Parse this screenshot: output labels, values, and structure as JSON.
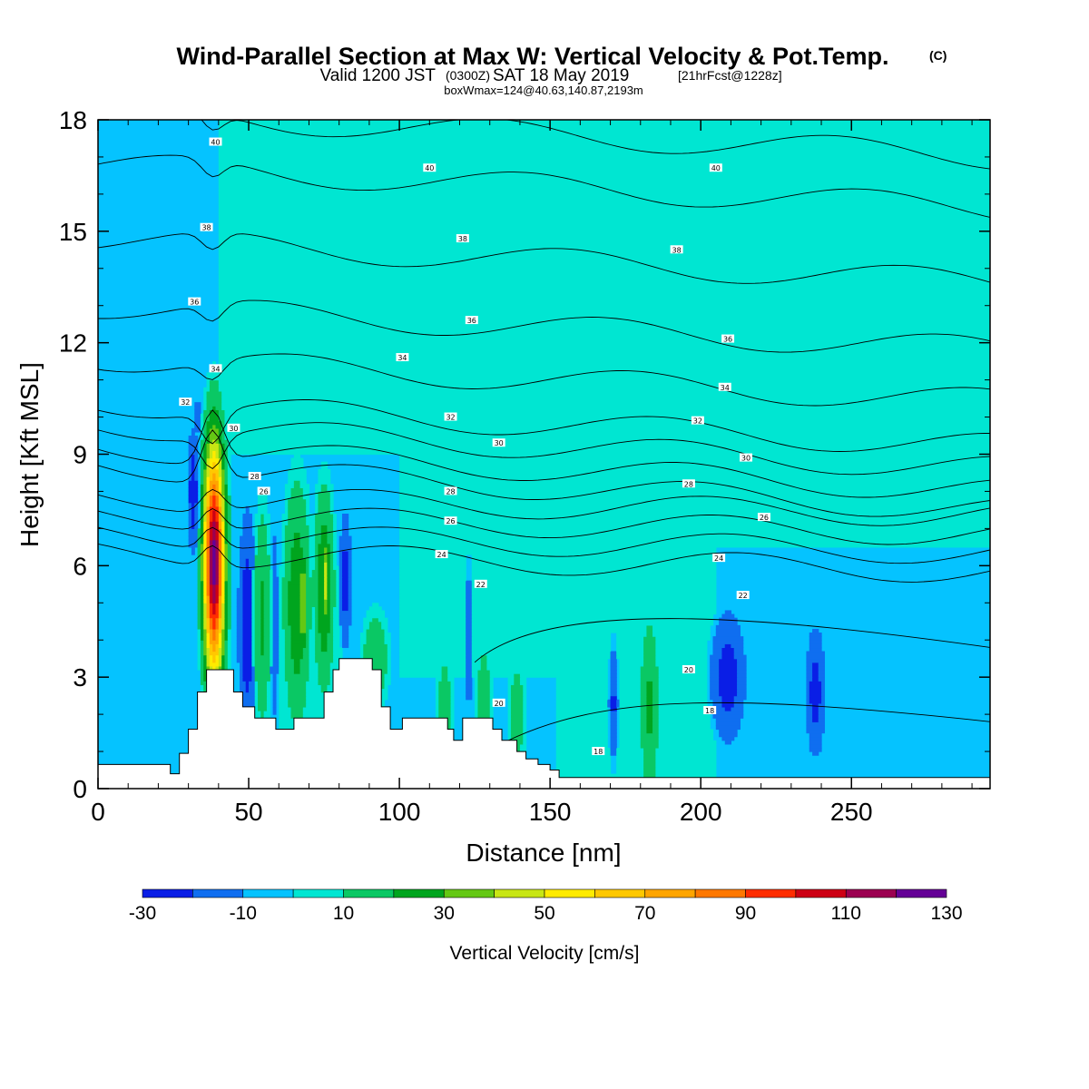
{
  "title": {
    "main": "Wind-Parallel Section at Max W: Vertical Velocity & Pot.Temp.",
    "copyright": "(C)",
    "valid_prefix": "Valid 1200 JST",
    "utc": "(0300Z)",
    "valid_date": "SAT 18 May 2019",
    "forecast": "[21hrFcst@1228z]",
    "boxinfo": "boxWmax=124@40.63,140.87,2193m"
  },
  "chart_data": {
    "type": "heatmap",
    "xlabel": "Distance [nm]",
    "ylabel": "Height [Kft MSL]",
    "xlim": [
      0,
      296
    ],
    "ylim": [
      0,
      18
    ],
    "xticks": [
      0,
      50,
      100,
      150,
      200,
      250
    ],
    "yticks": [
      0,
      3,
      6,
      9,
      12,
      15,
      18
    ],
    "colorbar": {
      "title": "Vertical Velocity [cm/s]",
      "levels": [
        -30,
        -20,
        -10,
        0,
        10,
        20,
        30,
        40,
        50,
        60,
        70,
        80,
        90,
        100,
        110,
        120,
        130
      ],
      "labels": [
        "-30",
        "-10",
        "10",
        "30",
        "50",
        "70",
        "90",
        "110",
        "130"
      ],
      "label_values": [
        -30,
        -10,
        10,
        30,
        50,
        70,
        90,
        110,
        130
      ],
      "colors": [
        "#0a1ee6",
        "#0f6ef0",
        "#05c3ff",
        "#00e6d2",
        "#0ac864",
        "#00a51e",
        "#64c814",
        "#c8e614",
        "#ffeb00",
        "#ffc800",
        "#ffa500",
        "#ff7800",
        "#ff2d00",
        "#cd0014",
        "#9b0050",
        "#640096"
      ]
    },
    "background_color": "#05c3ff",
    "updraft_regions": [
      {
        "x": [
          100,
          300
        ],
        "y": [
          6.5,
          18
        ],
        "w": 5
      },
      {
        "x": [
          100,
          160
        ],
        "y": [
          3,
          6.5
        ],
        "w": 5
      },
      {
        "x": [
          152,
          205
        ],
        "y": [
          0.3,
          6.5
        ],
        "w": 5
      },
      {
        "x": [
          60,
          82
        ],
        "y": [
          0,
          6
        ],
        "w": 5
      },
      {
        "x": [
          40,
          100
        ],
        "y": [
          9,
          18
        ],
        "w": 5
      }
    ],
    "features": [
      {
        "kind": "updraft",
        "x": 38.5,
        "y": 6.1,
        "sx": 2.4,
        "sy": 2.2,
        "w": 124
      },
      {
        "kind": "updraft",
        "x": 38.5,
        "y": 7.8,
        "sx": 2.2,
        "sy": 1.2,
        "w": 60
      },
      {
        "kind": "updraft",
        "x": 38.5,
        "y": 4.2,
        "sx": 2.2,
        "sy": 1.0,
        "w": 60
      },
      {
        "kind": "updraft",
        "x": 38.5,
        "y": 6.0,
        "sx": 3.5,
        "sy": 3.2,
        "w": 20
      },
      {
        "kind": "downdraft",
        "x": 31.5,
        "y": 8.0,
        "sx": 1.3,
        "sy": 1.2,
        "w": -28
      },
      {
        "kind": "downdraft",
        "x": 33.0,
        "y": 10.0,
        "sx": 1.1,
        "sy": 1.1,
        "w": -12
      },
      {
        "kind": "downdraft",
        "x": 49.5,
        "y": 4.4,
        "sx": 2.2,
        "sy": 2.2,
        "w": -28
      },
      {
        "kind": "downdraft",
        "x": 58.5,
        "y": 4.4,
        "sx": 1.1,
        "sy": 2.2,
        "w": -18
      },
      {
        "kind": "updraft",
        "x": 54.5,
        "y": 4.6,
        "sx": 2.0,
        "sy": 2.2,
        "w": 22
      },
      {
        "kind": "updraft",
        "x": 66.0,
        "y": 5.0,
        "sx": 3.2,
        "sy": 2.3,
        "w": 28
      },
      {
        "kind": "updraft",
        "x": 68.0,
        "y": 5.0,
        "sx": 1.1,
        "sy": 1.1,
        "w": 42
      },
      {
        "kind": "updraft",
        "x": 75.0,
        "y": 5.4,
        "sx": 2.4,
        "sy": 1.9,
        "w": 30
      },
      {
        "kind": "updraft",
        "x": 75.5,
        "y": 5.6,
        "sx": 0.8,
        "sy": 1.0,
        "w": 46
      },
      {
        "kind": "downdraft",
        "x": 82.0,
        "y": 5.6,
        "sx": 1.4,
        "sy": 1.4,
        "w": -25
      },
      {
        "kind": "updraft",
        "x": 92.0,
        "y": 3.5,
        "sx": 3.5,
        "sy": 1.0,
        "w": 18
      },
      {
        "kind": "updraft",
        "x": 115.0,
        "y": 2.0,
        "sx": 2.0,
        "sy": 1.2,
        "w": 18
      },
      {
        "kind": "updraft",
        "x": 128.0,
        "y": 2.5,
        "sx": 2.0,
        "sy": 1.2,
        "w": 16
      },
      {
        "kind": "updraft",
        "x": 139.0,
        "y": 2.0,
        "sx": 2.2,
        "sy": 1.0,
        "w": 18
      },
      {
        "kind": "downdraft",
        "x": 123.0,
        "y": 4.0,
        "sx": 0.8,
        "sy": 1.6,
        "w": -20
      },
      {
        "kind": "updraft",
        "x": 183.0,
        "y": 2.2,
        "sx": 2.3,
        "sy": 1.8,
        "w": 22
      },
      {
        "kind": "downdraft",
        "x": 171.0,
        "y": 2.3,
        "sx": 1.2,
        "sy": 1.2,
        "w": -22
      },
      {
        "kind": "downdraft",
        "x": 209.0,
        "y": 3.0,
        "sx": 4.2,
        "sy": 1.3,
        "w": -26
      },
      {
        "kind": "downdraft",
        "x": 238.0,
        "y": 2.6,
        "sx": 2.4,
        "sy": 1.3,
        "w": -25
      }
    ],
    "terrain": [
      [
        0,
        0.65
      ],
      [
        24,
        0.4
      ],
      [
        27,
        0.95
      ],
      [
        30,
        1.6
      ],
      [
        33,
        2.6
      ],
      [
        36,
        3.2
      ],
      [
        42,
        3.2
      ],
      [
        45,
        2.6
      ],
      [
        48,
        2.2
      ],
      [
        52,
        1.9
      ],
      [
        57,
        1.9
      ],
      [
        59,
        1.6
      ],
      [
        63,
        1.6
      ],
      [
        65,
        1.9
      ],
      [
        72,
        1.9
      ],
      [
        75,
        2.6
      ],
      [
        78,
        3.2
      ],
      [
        80,
        3.5
      ],
      [
        88,
        3.5
      ],
      [
        91,
        3.2
      ],
      [
        94,
        2.2
      ],
      [
        97,
        1.6
      ],
      [
        100,
        1.6
      ],
      [
        101,
        1.9
      ],
      [
        112,
        1.9
      ],
      [
        116,
        1.6
      ],
      [
        118,
        1.3
      ],
      [
        121,
        1.9
      ],
      [
        128,
        1.9
      ],
      [
        131,
        1.6
      ],
      [
        134,
        1.3
      ],
      [
        139,
        1.0
      ],
      [
        142,
        0.8
      ],
      [
        146,
        0.65
      ],
      [
        150,
        0.5
      ],
      [
        153,
        0.3
      ],
      [
        296,
        0.3
      ]
    ],
    "theta_lines": [
      {
        "base": 6.1,
        "label": ""
      },
      {
        "base": 6.6,
        "label": ""
      },
      {
        "base": 7.1,
        "label": "24"
      },
      {
        "base": 7.6,
        "label": "26"
      },
      {
        "base": 8.1,
        "label": "28"
      },
      {
        "base": 8.6,
        "label": "30"
      },
      {
        "base": 9.2,
        "label": "32"
      },
      {
        "base": 9.8,
        "label": "34"
      },
      {
        "base": 11.0,
        "label": "36"
      },
      {
        "base": 12.4,
        "label": "38"
      },
      {
        "base": 14.2,
        "label": "40"
      },
      {
        "base": 16.2,
        "label": ""
      },
      {
        "base": 17.6,
        "label": ""
      }
    ],
    "theta_labels": [
      {
        "text": "40",
        "x": 39,
        "y": 17.4
      },
      {
        "text": "40",
        "x": 110,
        "y": 16.7
      },
      {
        "text": "40",
        "x": 205,
        "y": 16.7
      },
      {
        "text": "38",
        "x": 36,
        "y": 15.1
      },
      {
        "text": "38",
        "x": 121,
        "y": 14.8
      },
      {
        "text": "38",
        "x": 192,
        "y": 14.5
      },
      {
        "text": "36",
        "x": 32,
        "y": 13.1
      },
      {
        "text": "36",
        "x": 124,
        "y": 12.6
      },
      {
        "text": "36",
        "x": 209,
        "y": 12.1
      },
      {
        "text": "34",
        "x": 39,
        "y": 11.3
      },
      {
        "text": "34",
        "x": 101,
        "y": 11.6
      },
      {
        "text": "34",
        "x": 208,
        "y": 10.8
      },
      {
        "text": "32",
        "x": 29,
        "y": 10.4
      },
      {
        "text": "32",
        "x": 117,
        "y": 10.0
      },
      {
        "text": "32",
        "x": 199,
        "y": 9.9
      },
      {
        "text": "30",
        "x": 45,
        "y": 9.7
      },
      {
        "text": "30",
        "x": 133,
        "y": 9.3
      },
      {
        "text": "30",
        "x": 215,
        "y": 8.9
      },
      {
        "text": "28",
        "x": 52,
        "y": 8.4
      },
      {
        "text": "28",
        "x": 117,
        "y": 8.0
      },
      {
        "text": "28",
        "x": 196,
        "y": 8.2
      },
      {
        "text": "26",
        "x": 55,
        "y": 8.0
      },
      {
        "text": "26",
        "x": 117,
        "y": 7.2
      },
      {
        "text": "26",
        "x": 221,
        "y": 7.3
      },
      {
        "text": "24",
        "x": 114,
        "y": 6.3
      },
      {
        "text": "24",
        "x": 206,
        "y": 6.2
      },
      {
        "text": "22",
        "x": 127,
        "y": 5.5
      },
      {
        "text": "22",
        "x": 214,
        "y": 5.2
      },
      {
        "text": "20",
        "x": 196,
        "y": 3.2
      },
      {
        "text": "20",
        "x": 133,
        "y": 2.3
      },
      {
        "text": "18",
        "x": 203,
        "y": 2.1
      },
      {
        "text": "18",
        "x": 166,
        "y": 1.0
      }
    ]
  }
}
